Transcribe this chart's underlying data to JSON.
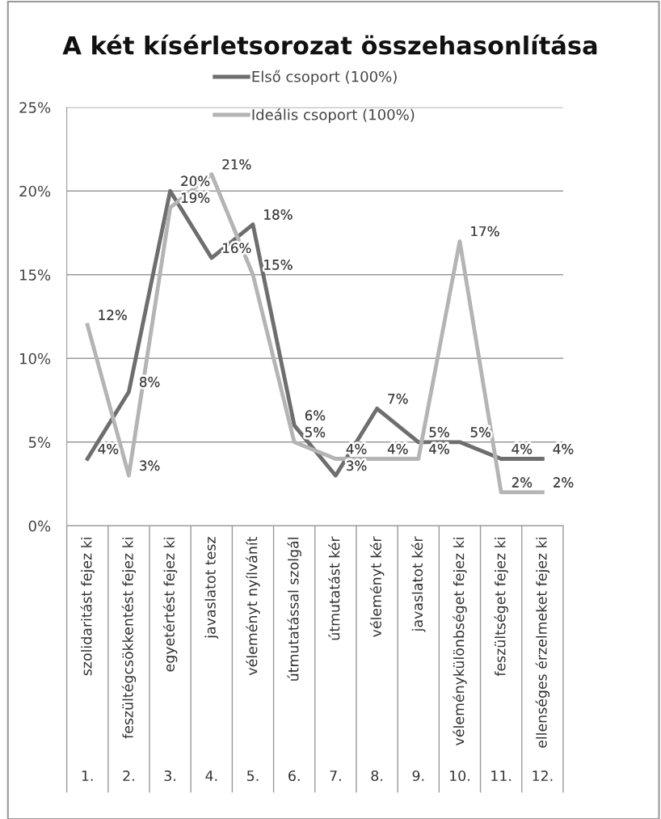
{
  "chart_data": {
    "type": "line",
    "title": "A két kísérletsorozat összehasonlítása",
    "categories": [
      "szolidaritást fejez ki\n1.",
      "feszültégcsökkentést fejez ki\n2.",
      "egyetértést fejez ki\n3.",
      "javaslatot tesz\n4.",
      "véleményt nyílvánít\n5.",
      "útmutatással szolgál\n6.",
      "útmutatást kér\n7.",
      "véleményt kér\n8.",
      "javaslatot kér\n9.",
      "véleménykülönbséget fejez ki\n10.",
      "feszültséget fejez ki\n11.",
      "ellenséges érzelmeket fejez ki\n12."
    ],
    "series": [
      {
        "name": "Első csoport (100%)",
        "color": "#6e6e6e",
        "values": [
          4,
          8,
          20,
          16,
          18,
          6,
          3,
          7,
          5,
          5,
          4,
          4
        ],
        "value_labels": [
          "4%",
          "8%",
          "20%",
          "16%",
          "18%",
          "6%",
          "3%",
          "7%",
          "5%",
          "5%",
          "4%",
          "4%"
        ]
      },
      {
        "name": "Ideális csoport (100%)",
        "color": "#b4b4b4",
        "values": [
          12,
          3,
          19,
          21,
          15,
          5,
          4,
          4,
          4,
          17,
          2,
          2
        ],
        "value_labels": [
          "12%",
          "3%",
          "19%",
          "21%",
          "15%",
          "5%",
          "4%",
          "4%",
          "4%",
          "17%",
          "2%",
          "2%"
        ]
      }
    ],
    "ylim": [
      0,
      25
    ],
    "yticks": [
      {
        "value": 0,
        "label": "0%"
      },
      {
        "value": 5,
        "label": "5%"
      },
      {
        "value": 10,
        "label": "10%"
      },
      {
        "value": 15,
        "label": "15%"
      },
      {
        "value": 20,
        "label": "20%"
      },
      {
        "value": 25,
        "label": "25%"
      }
    ],
    "grid": "y",
    "legend": "top",
    "marker": "none",
    "line_style": "solid"
  }
}
